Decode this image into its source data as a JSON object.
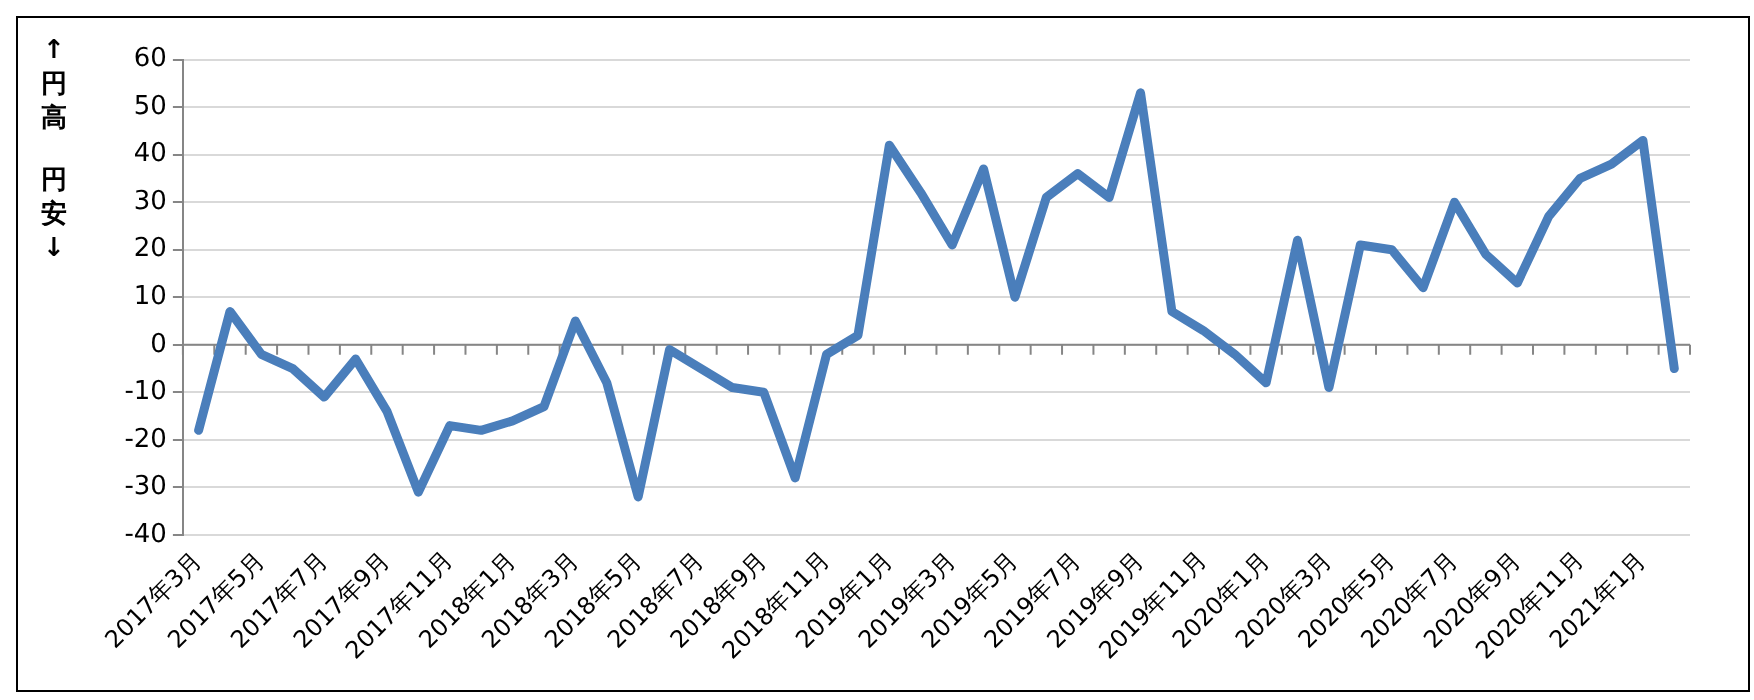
{
  "chart_data": {
    "type": "line",
    "ylabel": "↑円高",
    "annotations": [
      "円安↓"
    ],
    "categories": [
      "2017年3月",
      null,
      "2017年5月",
      null,
      "2017年7月",
      null,
      "2017年9月",
      null,
      "2017年11月",
      null,
      "2018年1月",
      null,
      "2018年3月",
      null,
      "2018年5月",
      null,
      "2018年7月",
      null,
      "2018年9月",
      null,
      "2018年11月",
      null,
      "2019年1月",
      null,
      "2019年3月",
      null,
      "2019年5月",
      null,
      "2019年7月",
      null,
      "2019年9月",
      null,
      "2019年11月",
      null,
      "2020年1月",
      null,
      "2020年3月",
      null,
      "2020年5月",
      null,
      "2020年7月",
      null,
      "2020年9月",
      null,
      "2020年11月",
      null,
      "2021年1月",
      null
    ],
    "series": [
      {
        "color": "#4a7ebb",
        "values": [
          -18,
          7,
          -2,
          -5,
          -11,
          -3,
          -14,
          -31,
          -17,
          -18,
          -16,
          -13,
          5,
          -8,
          -32,
          -1,
          -5,
          -9,
          -10,
          -28,
          -2,
          2,
          42,
          32,
          21,
          37,
          10,
          31,
          36,
          31,
          53,
          7,
          3,
          -2,
          -8,
          22,
          -9,
          21,
          20,
          12,
          30,
          19,
          13,
          27,
          35,
          38,
          43,
          -5
        ]
      }
    ],
    "ylim": [
      -40,
      60
    ],
    "yticks": [
      -40,
      -30,
      -20,
      -10,
      0,
      10,
      20,
      30,
      40,
      50,
      60
    ],
    "grid": "y",
    "legend": false,
    "marker": "none",
    "line_style": "solid"
  }
}
